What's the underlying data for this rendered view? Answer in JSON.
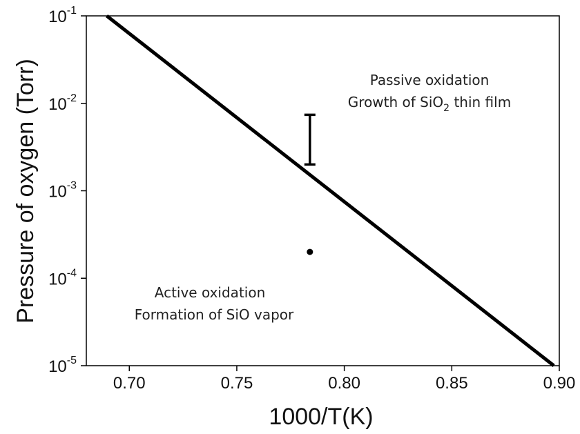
{
  "chart_data": {
    "type": "line",
    "title": "",
    "xlabel": "1000/T(K)",
    "ylabel": "Pressure of oxygen (Torr)",
    "xlim": [
      0.68,
      0.9
    ],
    "ylim": [
      1e-05,
      0.1
    ],
    "yscale": "log",
    "grid": false,
    "x_ticks": [
      "0.70",
      "0.75",
      "0.80",
      "0.85",
      "0.90"
    ],
    "x_tick_values": [
      0.7,
      0.75,
      0.8,
      0.85,
      0.9
    ],
    "y_ticks": [
      {
        "base": "10",
        "exp": "-5",
        "value": 1e-05
      },
      {
        "base": "10",
        "exp": "-4",
        "value": 0.0001
      },
      {
        "base": "10",
        "exp": "-3",
        "value": 0.001
      },
      {
        "base": "10",
        "exp": "-2",
        "value": 0.01
      },
      {
        "base": "10",
        "exp": "-1",
        "value": 0.1
      }
    ],
    "series": [
      {
        "x": [
          0.6895,
          0.8975
        ],
        "y": [
          0.1,
          1e-05
        ],
        "color": "#000000"
      }
    ],
    "error_bar": {
      "x": 0.784,
      "y_low": 0.002,
      "y_high": 0.0074
    },
    "point": {
      "x": 0.784,
      "y": 0.0002
    },
    "annotations": {
      "passive_line1": "Passive oxidation",
      "passive_line2_main": "Growth of SiO",
      "passive_line2_sub": "2",
      "passive_line2_tail": " thin film",
      "active_line1": "Active oxidation",
      "active_line2": "Formation of SiO vapor"
    }
  }
}
